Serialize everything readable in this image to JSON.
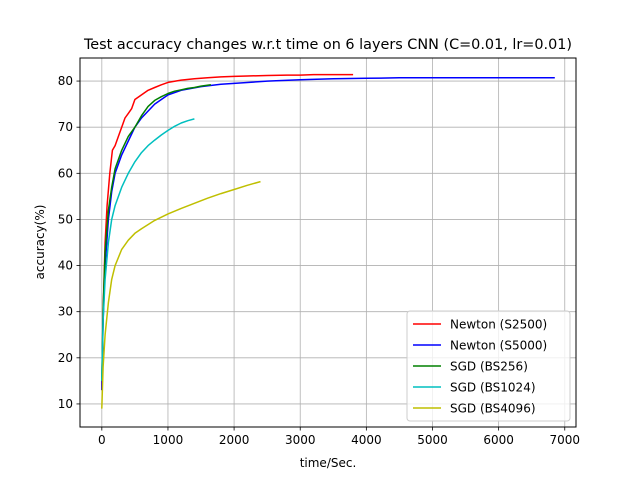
{
  "chart_data": {
    "type": "line",
    "title": "Test accuracy changes w.r.t time on 6 layers CNN (C=0.01, lr=0.01)",
    "xlabel": "time/Sec.",
    "ylabel": "accuracy(%)",
    "xlim": [
      -330,
      7170
    ],
    "ylim": [
      5,
      85
    ],
    "xticks": [
      0,
      1000,
      2000,
      3000,
      4000,
      5000,
      6000,
      7000
    ],
    "yticks": [
      10,
      20,
      30,
      40,
      50,
      60,
      70,
      80
    ],
    "grid": true,
    "legend_position": "lower-right",
    "series": [
      {
        "name": "Newton (S2500)",
        "color": "#ff0000",
        "x": [
          0,
          20,
          50,
          80,
          120,
          160,
          200,
          250,
          300,
          350,
          400,
          450,
          500,
          600,
          700,
          800,
          900,
          1000,
          1200,
          1400,
          1600,
          1800,
          2000,
          2200,
          2500,
          2800,
          3000,
          3200,
          3500,
          3800
        ],
        "y": [
          13,
          30,
          45,
          53,
          60,
          65,
          66,
          68,
          70,
          72,
          73,
          74,
          76,
          77,
          78,
          78.6,
          79.2,
          79.7,
          80.2,
          80.5,
          80.7,
          80.9,
          81.0,
          81.1,
          81.2,
          81.3,
          81.3,
          81.4,
          81.4,
          81.4
        ]
      },
      {
        "name": "Newton (S5000)",
        "color": "#0000ff",
        "x": [
          0,
          20,
          50,
          100,
          150,
          200,
          300,
          400,
          500,
          600,
          800,
          1000,
          1200,
          1500,
          1800,
          2000,
          2500,
          3000,
          3500,
          4000,
          4500,
          5000,
          5500,
          6000,
          6500,
          6850
        ],
        "y": [
          13,
          28,
          40,
          50,
          56,
          60,
          64,
          67,
          70,
          72,
          75,
          77,
          78,
          78.8,
          79.3,
          79.5,
          80.0,
          80.3,
          80.5,
          80.6,
          80.7,
          80.7,
          80.7,
          80.7,
          80.7,
          80.7
        ]
      },
      {
        "name": "SGD (BS256)",
        "color": "#008000",
        "x": [
          0,
          20,
          50,
          100,
          150,
          200,
          300,
          400,
          500,
          600,
          700,
          800,
          900,
          1000,
          1100,
          1200,
          1300,
          1400,
          1500,
          1650
        ],
        "y": [
          15,
          30,
          43,
          52,
          57,
          61,
          65,
          68,
          70,
          72.5,
          74.5,
          75.8,
          76.6,
          77.3,
          77.8,
          78.1,
          78.4,
          78.6,
          78.9,
          79.2
        ]
      },
      {
        "name": "SGD (BS1024)",
        "color": "#00bfbf",
        "x": [
          0,
          20,
          50,
          100,
          150,
          200,
          300,
          400,
          500,
          600,
          700,
          800,
          900,
          1000,
          1100,
          1200,
          1300,
          1400
        ],
        "y": [
          15,
          28,
          37,
          45,
          50,
          53,
          57,
          60,
          62.5,
          64.5,
          66,
          67.2,
          68.3,
          69.3,
          70.2,
          70.9,
          71.4,
          71.8
        ]
      },
      {
        "name": "SGD (BS4096)",
        "color": "#bfbf00",
        "x": [
          0,
          20,
          50,
          100,
          150,
          200,
          300,
          400,
          500,
          600,
          800,
          1000,
          1200,
          1400,
          1600,
          1800,
          2000,
          2200,
          2400
        ],
        "y": [
          9,
          18,
          25,
          32,
          37,
          40,
          43.5,
          45.5,
          47,
          48,
          49.8,
          51.2,
          52.4,
          53.5,
          54.6,
          55.6,
          56.5,
          57.4,
          58.2
        ]
      }
    ]
  }
}
